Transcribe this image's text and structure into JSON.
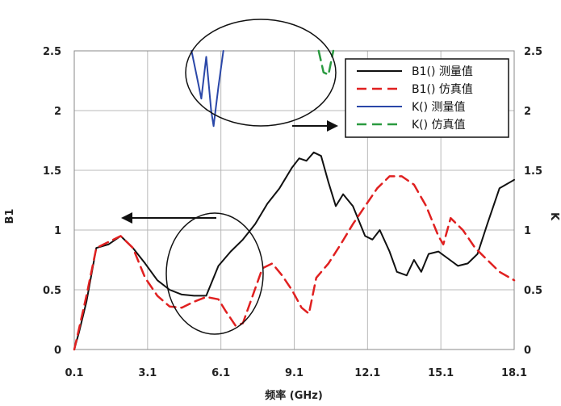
{
  "chart_data": {
    "type": "line",
    "xlabel": "频率 (GHz)",
    "ylabel_left": "B1",
    "ylabel_right": "K",
    "xlim": [
      0.1,
      18.1
    ],
    "ylim": [
      0,
      2.5
    ],
    "y2lim": [
      0,
      2.5
    ],
    "grid": true,
    "legend_position": "top-right",
    "x_ticks": [
      "0.1",
      "3.1",
      "6.1",
      "9.1",
      "12.1",
      "15.1",
      "18.1"
    ],
    "y_ticks": [
      "0",
      "0.5",
      "1",
      "1.5",
      "2",
      "2.5"
    ],
    "y2_ticks": [
      "0",
      "0.5",
      "1",
      "1.5",
      "2",
      "2.5"
    ],
    "series": [
      {
        "name": "B1() 测量值",
        "color": "#111111",
        "dash": "solid",
        "axis": "left",
        "x": [
          0.1,
          0.3,
          0.6,
          1.0,
          1.5,
          2.0,
          2.5,
          3.0,
          3.5,
          4.0,
          4.5,
          5.0,
          5.5,
          6.0,
          6.5,
          7.0,
          7.5,
          8.0,
          8.5,
          9.0,
          9.3,
          9.6,
          9.9,
          10.2,
          10.5,
          10.8,
          11.1,
          11.5,
          12.0,
          12.3,
          12.6,
          13.0,
          13.3,
          13.7,
          14.0,
          14.3,
          14.6,
          15.0,
          15.4,
          15.8,
          16.2,
          16.6,
          17.0,
          17.5,
          18.1
        ],
        "y": [
          0.0,
          0.15,
          0.4,
          0.85,
          0.88,
          0.95,
          0.85,
          0.72,
          0.58,
          0.5,
          0.46,
          0.45,
          0.45,
          0.7,
          0.82,
          0.92,
          1.05,
          1.22,
          1.35,
          1.52,
          1.6,
          1.58,
          1.65,
          1.62,
          1.4,
          1.2,
          1.3,
          1.2,
          0.95,
          0.92,
          1.0,
          0.82,
          0.65,
          0.62,
          0.75,
          0.65,
          0.8,
          0.82,
          0.76,
          0.7,
          0.72,
          0.8,
          1.05,
          1.35,
          1.42
        ]
      },
      {
        "name": "B1() 仿真值",
        "color": "#e02020",
        "dash": "dashed",
        "axis": "left",
        "x": [
          0.1,
          0.3,
          0.6,
          1.0,
          1.5,
          2.0,
          2.5,
          3.0,
          3.5,
          4.0,
          4.5,
          5.0,
          5.5,
          6.0,
          6.3,
          6.7,
          7.0,
          7.4,
          7.8,
          8.2,
          8.6,
          9.0,
          9.4,
          9.7,
          10.0,
          10.5,
          11.0,
          11.5,
          12.0,
          12.5,
          13.0,
          13.5,
          14.0,
          14.5,
          15.0,
          15.2,
          15.5,
          16.0,
          16.5,
          17.0,
          17.5,
          18.1
        ],
        "y": [
          0.0,
          0.18,
          0.45,
          0.85,
          0.9,
          0.95,
          0.85,
          0.6,
          0.45,
          0.36,
          0.35,
          0.4,
          0.44,
          0.42,
          0.32,
          0.2,
          0.22,
          0.45,
          0.68,
          0.72,
          0.62,
          0.5,
          0.35,
          0.3,
          0.6,
          0.72,
          0.88,
          1.05,
          1.2,
          1.35,
          1.45,
          1.45,
          1.38,
          1.2,
          0.95,
          0.88,
          1.1,
          1.0,
          0.85,
          0.75,
          0.65,
          0.58
        ]
      },
      {
        "name": "K() 测量值",
        "color": "#2a47a8",
        "dash": "solid",
        "axis": "right",
        "x": [
          4.9,
          5.1,
          5.3,
          5.5,
          5.7,
          5.8,
          6.0,
          6.2
        ],
        "y": [
          2.5,
          2.3,
          2.1,
          2.45,
          2.0,
          1.87,
          2.2,
          2.5
        ]
      },
      {
        "name": "K() 仿真值",
        "color": "#2a9a40",
        "dash": "dashed",
        "axis": "right",
        "x": [
          10.1,
          10.3,
          10.5,
          10.7
        ],
        "y": [
          2.5,
          2.32,
          2.3,
          2.5
        ]
      }
    ]
  }
}
